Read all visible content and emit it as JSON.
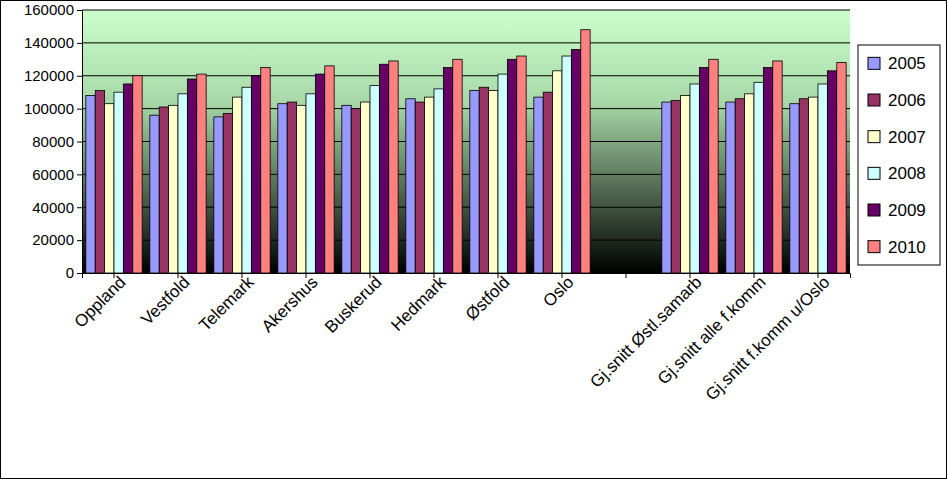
{
  "chart_data": {
    "type": "bar",
    "categories": [
      "Oppland",
      "Vestfold",
      "Telemark",
      "Akershus",
      "Buskerud",
      "Hedmark",
      "Østfold",
      "Oslo",
      null,
      "Gj.snitt Østl.samarb",
      "Gj.snitt alle f.komm",
      "Gj.snitt f.komm u/Oslo"
    ],
    "series": [
      {
        "name": "2005",
        "color": "#9999ff",
        "values": [
          108000,
          96000,
          95000,
          103000,
          102000,
          106000,
          111000,
          107000,
          null,
          104000,
          104000,
          103000
        ]
      },
      {
        "name": "2006",
        "color": "#993366",
        "values": [
          111000,
          101000,
          97000,
          104000,
          100000,
          104000,
          113000,
          110000,
          null,
          105000,
          106000,
          106000
        ]
      },
      {
        "name": "2007",
        "color": "#ffffcc",
        "values": [
          103000,
          102000,
          107000,
          102000,
          104000,
          107000,
          111000,
          123000,
          null,
          108000,
          109000,
          107000
        ]
      },
      {
        "name": "2008",
        "color": "#ccffff",
        "values": [
          110000,
          109000,
          113000,
          109000,
          114000,
          112000,
          121000,
          132000,
          null,
          115000,
          116000,
          115000
        ]
      },
      {
        "name": "2009",
        "color": "#660066",
        "values": [
          115000,
          118000,
          120000,
          121000,
          127000,
          125000,
          130000,
          136000,
          null,
          125000,
          125000,
          123000
        ]
      },
      {
        "name": "2010",
        "color": "#ff8080",
        "values": [
          120000,
          121000,
          125000,
          126000,
          129000,
          130000,
          132000,
          148000,
          null,
          130000,
          129000,
          128000
        ]
      }
    ],
    "ylim": [
      0,
      160000
    ],
    "yticks": [
      0,
      20000,
      40000,
      60000,
      80000,
      100000,
      120000,
      140000,
      160000
    ],
    "grid": true,
    "legend": "right"
  }
}
